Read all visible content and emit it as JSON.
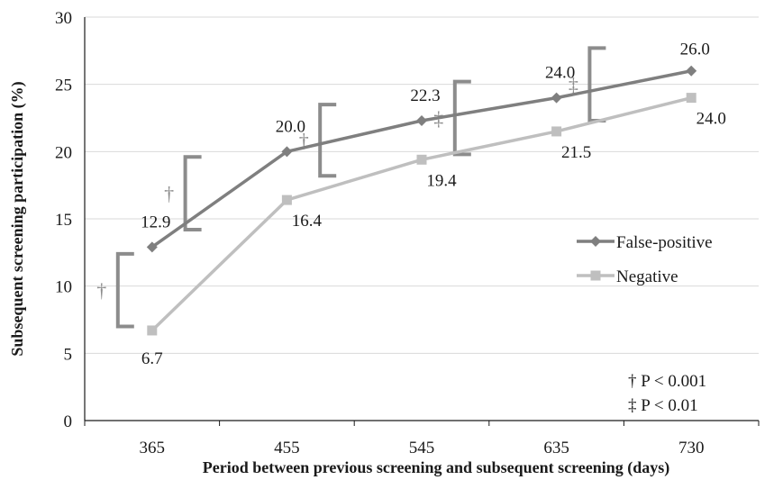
{
  "chart_data": {
    "type": "line",
    "title": "",
    "xlabel": "Period between previous screening and subsequent screening (days)",
    "ylabel": "Subsequent screening participation (%)",
    "categories": [
      "365",
      "455",
      "545",
      "635",
      "730"
    ],
    "ylim": [
      0,
      30
    ],
    "yticks": [
      0,
      5,
      10,
      15,
      20,
      25,
      30
    ],
    "grid": true,
    "legend_position": "right",
    "series": [
      {
        "name": "False-positive",
        "values": [
          12.9,
          20.0,
          22.3,
          24.0,
          26.0
        ],
        "labels": [
          "12.9",
          "20.0",
          "22.3",
          "24.0",
          "26.0"
        ],
        "color": "#7f7f7f",
        "marker": "diamond"
      },
      {
        "name": "Negative",
        "values": [
          6.7,
          16.4,
          19.4,
          21.5,
          24.0
        ],
        "labels": [
          "6.7",
          "16.4",
          "19.4",
          "21.5",
          "24.0"
        ],
        "color": "#bfbfbf",
        "marker": "square"
      }
    ],
    "significance": [
      {
        "between": [
          "365",
          "455"
        ],
        "offset": 0.0,
        "low": 7.0,
        "high": 12.4,
        "symbol": "†"
      },
      {
        "between": [
          "365",
          "455"
        ],
        "offset": 0.5,
        "low": 14.2,
        "high": 19.6,
        "symbol": "†"
      },
      {
        "between": [
          "455",
          "545"
        ],
        "offset": 0.5,
        "low": 18.2,
        "high": 23.5,
        "symbol": "†"
      },
      {
        "between": [
          "545",
          "635"
        ],
        "offset": 0.5,
        "low": 19.8,
        "high": 25.2,
        "symbol": "‡"
      },
      {
        "between": [
          "635",
          "730"
        ],
        "offset": 0.5,
        "low": 22.3,
        "high": 27.7,
        "symbol": "‡"
      }
    ],
    "notes": [
      "† P < 0.001",
      "‡ P < 0.01"
    ],
    "bracket_color": "#8c8c8c",
    "grid_color": "#d9d9d9"
  }
}
